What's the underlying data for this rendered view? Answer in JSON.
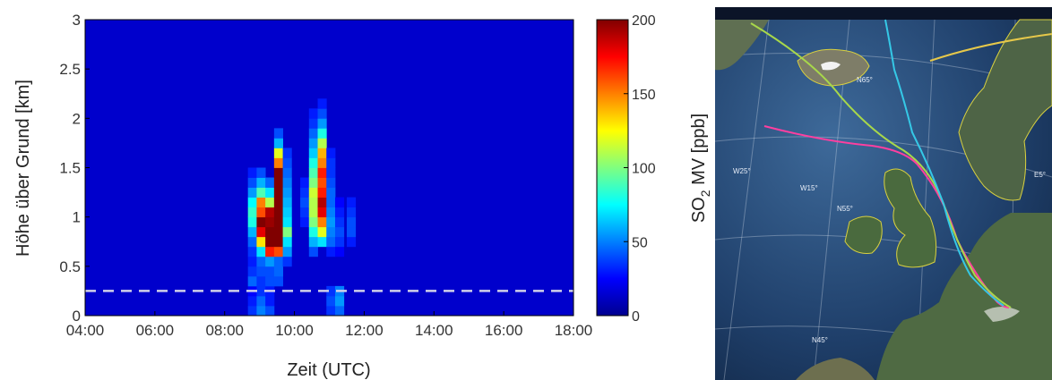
{
  "chart_data": {
    "type": "heatmap",
    "xlabel": "Zeit (UTC)",
    "ylabel": "Höhe über Grund [km]",
    "colorbar_label_parts": [
      "SO",
      "2",
      " MV [ppb]"
    ],
    "xlim": [
      "04:00",
      "18:00"
    ],
    "ylim": [
      0,
      3
    ],
    "x_ticks": [
      "04:00",
      "06:00",
      "08:00",
      "10:00",
      "12:00",
      "14:00",
      "16:00",
      "18:00"
    ],
    "y_ticks": [
      "0",
      "0.5",
      "1",
      "1.5",
      "2",
      "2.5",
      "3"
    ],
    "color_scale": {
      "min": 0,
      "max": 200,
      "ticks": [
        "0",
        "50",
        "100",
        "150",
        "200"
      ],
      "colormap": "jet"
    },
    "background_value": 15,
    "reference_line": {
      "height_km": 0.25,
      "style": "dashed",
      "color": "#d0d0e8"
    },
    "profiles": [
      {
        "time": "08:40",
        "cells": [
          [
            0.0,
            35
          ],
          [
            0.1,
            30
          ],
          [
            0.2,
            25
          ],
          [
            0.3,
            45
          ],
          [
            0.4,
            35
          ],
          [
            0.5,
            30
          ],
          [
            0.6,
            35
          ],
          [
            0.7,
            45
          ],
          [
            0.8,
            60
          ],
          [
            0.9,
            80
          ],
          [
            1.0,
            85
          ],
          [
            1.1,
            75
          ],
          [
            1.2,
            55
          ],
          [
            1.3,
            40
          ],
          [
            1.4,
            30
          ]
        ]
      },
      {
        "time": "08:55",
        "cells": [
          [
            0.0,
            50
          ],
          [
            0.1,
            45
          ],
          [
            0.2,
            35
          ],
          [
            0.3,
            35
          ],
          [
            0.4,
            40
          ],
          [
            0.5,
            45
          ],
          [
            0.6,
            70
          ],
          [
            0.7,
            130
          ],
          [
            0.8,
            180
          ],
          [
            0.9,
            200
          ],
          [
            1.0,
            160
          ],
          [
            1.1,
            150
          ],
          [
            1.2,
            90
          ],
          [
            1.3,
            60
          ],
          [
            1.4,
            40
          ]
        ]
      },
      {
        "time": "09:10",
        "cells": [
          [
            0.0,
            40
          ],
          [
            0.1,
            30
          ],
          [
            0.2,
            30
          ],
          [
            0.3,
            40
          ],
          [
            0.4,
            40
          ],
          [
            0.5,
            55
          ],
          [
            0.6,
            170
          ],
          [
            0.7,
            200
          ],
          [
            0.8,
            200
          ],
          [
            0.9,
            195
          ],
          [
            1.0,
            190
          ],
          [
            1.1,
            110
          ],
          [
            1.2,
            70
          ],
          [
            1.3,
            45
          ]
        ]
      },
      {
        "time": "09:25",
        "cells": [
          [
            0.3,
            40
          ],
          [
            0.4,
            45
          ],
          [
            0.5,
            45
          ],
          [
            0.6,
            160
          ],
          [
            0.7,
            200
          ],
          [
            0.8,
            200
          ],
          [
            0.9,
            200
          ],
          [
            1.0,
            200
          ],
          [
            1.1,
            200
          ],
          [
            1.2,
            200
          ],
          [
            1.3,
            200
          ],
          [
            1.4,
            200
          ],
          [
            1.5,
            150
          ],
          [
            1.6,
            120
          ],
          [
            1.7,
            60
          ],
          [
            1.8,
            40
          ]
        ]
      },
      {
        "time": "09:40",
        "cells": [
          [
            0.5,
            35
          ],
          [
            0.6,
            55
          ],
          [
            0.7,
            70
          ],
          [
            0.8,
            100
          ],
          [
            0.9,
            70
          ],
          [
            1.0,
            65
          ],
          [
            1.1,
            60
          ],
          [
            1.2,
            55
          ],
          [
            1.3,
            50
          ],
          [
            1.4,
            45
          ],
          [
            1.5,
            40
          ],
          [
            1.6,
            35
          ]
        ]
      },
      {
        "time": "10:10",
        "cells": [
          [
            0.9,
            30
          ],
          [
            1.0,
            35
          ],
          [
            1.1,
            40
          ],
          [
            1.2,
            35
          ],
          [
            1.3,
            30
          ]
        ]
      },
      {
        "time": "10:25",
        "cells": [
          [
            0.6,
            40
          ],
          [
            0.7,
            60
          ],
          [
            0.8,
            80
          ],
          [
            0.9,
            100
          ],
          [
            1.0,
            110
          ],
          [
            1.1,
            110
          ],
          [
            1.2,
            115
          ],
          [
            1.3,
            100
          ],
          [
            1.4,
            90
          ],
          [
            1.5,
            80
          ],
          [
            1.6,
            65
          ],
          [
            1.7,
            55
          ],
          [
            1.8,
            45
          ],
          [
            1.9,
            35
          ],
          [
            2.0,
            30
          ]
        ]
      },
      {
        "time": "10:40",
        "cells": [
          [
            0.7,
            70
          ],
          [
            0.8,
            120
          ],
          [
            0.9,
            150
          ],
          [
            1.0,
            180
          ],
          [
            1.1,
            190
          ],
          [
            1.2,
            170
          ],
          [
            1.3,
            160
          ],
          [
            1.4,
            170
          ],
          [
            1.5,
            150
          ],
          [
            1.6,
            140
          ],
          [
            1.7,
            110
          ],
          [
            1.8,
            80
          ],
          [
            1.9,
            55
          ],
          [
            2.0,
            40
          ],
          [
            2.1,
            30
          ]
        ]
      },
      {
        "time": "10:55",
        "cells": [
          [
            0.0,
            35
          ],
          [
            0.1,
            40
          ],
          [
            0.2,
            35
          ],
          [
            0.6,
            30
          ],
          [
            0.7,
            45
          ],
          [
            0.8,
            50
          ],
          [
            0.9,
            55
          ],
          [
            1.0,
            50
          ],
          [
            1.1,
            45
          ],
          [
            1.2,
            45
          ],
          [
            1.3,
            40
          ],
          [
            1.4,
            35
          ],
          [
            1.5,
            35
          ],
          [
            1.6,
            30
          ]
        ]
      },
      {
        "time": "11:10",
        "cells": [
          [
            0.0,
            45
          ],
          [
            0.1,
            55
          ],
          [
            0.2,
            50
          ],
          [
            0.6,
            25
          ],
          [
            0.7,
            35
          ],
          [
            0.8,
            40
          ],
          [
            0.9,
            35
          ],
          [
            1.0,
            30
          ],
          [
            1.1,
            25
          ]
        ]
      },
      {
        "time": "11:30",
        "cells": [
          [
            0.7,
            30
          ],
          [
            0.8,
            40
          ],
          [
            0.9,
            40
          ],
          [
            1.0,
            35
          ],
          [
            1.1,
            30
          ]
        ]
      }
    ]
  },
  "map": {
    "labels": [
      "N65°",
      "W25°",
      "W15°",
      "N55°",
      "N45°",
      "E5°"
    ],
    "trajectory_colors": [
      "#ff3fa0",
      "#a8d84a",
      "#35c8e6",
      "#e6c84a"
    ]
  }
}
